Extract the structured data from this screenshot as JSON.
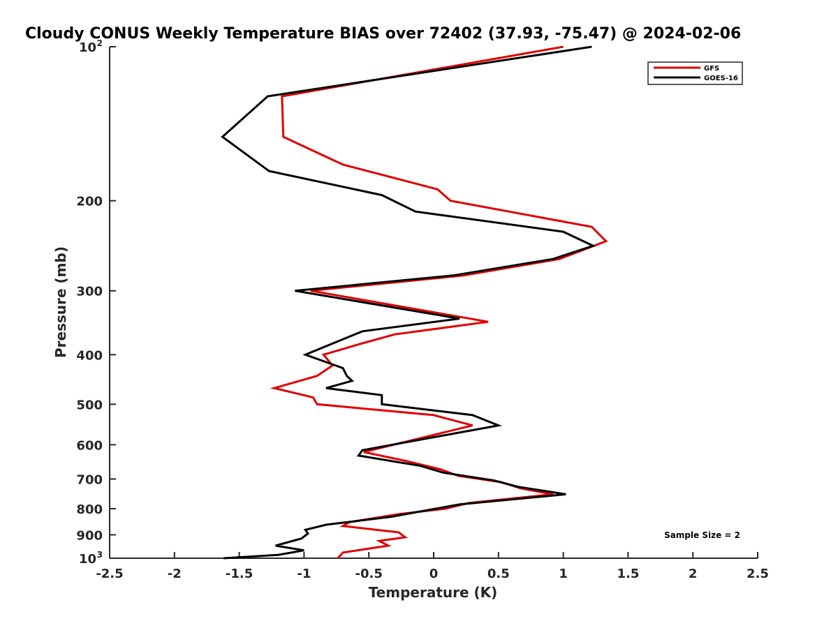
{
  "chart_data": {
    "type": "line",
    "title": "Cloudy CONUS Weekly Temperature BIAS over 72402 (37.93, -75.47) @ 2024-02-06",
    "xlabel": "Temperature (K)",
    "ylabel": "Pressure (mb)",
    "xlim": [
      -2.5,
      2.5
    ],
    "ylim": [
      100,
      1000
    ],
    "y_scale": "log",
    "y_inverted": true,
    "grid": false,
    "legend_position": "top-right",
    "x_ticks": [
      "-2.5",
      "-2",
      "-1.5",
      "-1",
      "-0.5",
      "0",
      "0.5",
      "1",
      "1.5",
      "2",
      "2.5"
    ],
    "y_ticks": [
      {
        "value": 100,
        "base": "10",
        "exp": "2"
      },
      {
        "value": 200,
        "label": "200"
      },
      {
        "value": 300,
        "label": "300"
      },
      {
        "value": 400,
        "label": "400"
      },
      {
        "value": 500,
        "label": "500"
      },
      {
        "value": 600,
        "label": "600"
      },
      {
        "value": 700,
        "label": "700"
      },
      {
        "value": 800,
        "label": "800"
      },
      {
        "value": 900,
        "label": "900"
      },
      {
        "value": 1000,
        "base": "10",
        "exp": "3"
      }
    ],
    "annotation": "Sample Size = 2",
    "series": [
      {
        "name": "GFS",
        "color": "#e00000",
        "points": [
          [
            1.0,
            100
          ],
          [
            -1.17,
            125
          ],
          [
            -1.16,
            150
          ],
          [
            -0.7,
            170
          ],
          [
            0.03,
            190
          ],
          [
            0.13,
            200
          ],
          [
            1.22,
            225
          ],
          [
            1.33,
            240
          ],
          [
            0.97,
            260
          ],
          [
            0.23,
            280
          ],
          [
            -0.95,
            300
          ],
          [
            0.42,
            345
          ],
          [
            -0.3,
            365
          ],
          [
            -0.55,
            380
          ],
          [
            -0.85,
            400
          ],
          [
            -0.78,
            420
          ],
          [
            -0.9,
            440
          ],
          [
            -1.23,
            465
          ],
          [
            -0.93,
            485
          ],
          [
            -0.9,
            500
          ],
          [
            0.0,
            525
          ],
          [
            0.3,
            550
          ],
          [
            -0.54,
            620
          ],
          [
            -0.22,
            645
          ],
          [
            0.05,
            670
          ],
          [
            0.19,
            690
          ],
          [
            0.52,
            710
          ],
          [
            0.67,
            730
          ],
          [
            0.92,
            750
          ],
          [
            0.27,
            780
          ],
          [
            0.09,
            800
          ],
          [
            -0.27,
            820
          ],
          [
            -0.65,
            850
          ],
          [
            -0.7,
            865
          ],
          [
            -0.27,
            890
          ],
          [
            -0.22,
            910
          ],
          [
            -0.42,
            925
          ],
          [
            -0.35,
            945
          ],
          [
            -0.7,
            975
          ],
          [
            -0.74,
            1000
          ]
        ]
      },
      {
        "name": "GOES-16",
        "color": "#000000",
        "points": [
          [
            1.22,
            100
          ],
          [
            -1.28,
            125
          ],
          [
            -1.63,
            150
          ],
          [
            -1.27,
            175
          ],
          [
            -0.4,
            195
          ],
          [
            -0.14,
            210
          ],
          [
            1.0,
            230
          ],
          [
            1.23,
            245
          ],
          [
            0.92,
            260
          ],
          [
            0.15,
            280
          ],
          [
            -1.07,
            300
          ],
          [
            0.2,
            340
          ],
          [
            -0.55,
            360
          ],
          [
            -0.99,
            400
          ],
          [
            -0.7,
            425
          ],
          [
            -0.67,
            440
          ],
          [
            -0.63,
            450
          ],
          [
            -0.83,
            465
          ],
          [
            -0.4,
            480
          ],
          [
            -0.4,
            500
          ],
          [
            0.3,
            525
          ],
          [
            0.5,
            550
          ],
          [
            -0.55,
            615
          ],
          [
            -0.58,
            630
          ],
          [
            -0.1,
            660
          ],
          [
            0.07,
            680
          ],
          [
            0.47,
            705
          ],
          [
            0.65,
            725
          ],
          [
            1.02,
            750
          ],
          [
            0.2,
            785
          ],
          [
            -0.1,
            810
          ],
          [
            -0.33,
            830
          ],
          [
            -0.83,
            860
          ],
          [
            -0.99,
            880
          ],
          [
            -0.97,
            895
          ],
          [
            -1.02,
            915
          ],
          [
            -1.22,
            945
          ],
          [
            -1.0,
            965
          ],
          [
            -1.2,
            985
          ],
          [
            -1.62,
            1000
          ]
        ]
      }
    ]
  }
}
